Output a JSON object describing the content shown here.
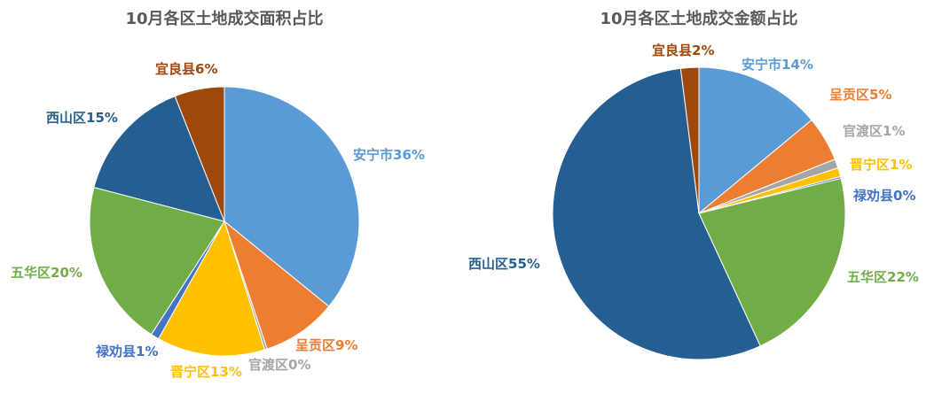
{
  "chart_data": [
    {
      "type": "pie",
      "title": "10月各区土地成交面积占比",
      "categories": [
        "安宁市",
        "呈贡区",
        "官渡区",
        "晋宁区",
        "禄劝县",
        "五华区",
        "西山区",
        "宜良县"
      ],
      "values": [
        36,
        9,
        0.3,
        13,
        1,
        20,
        15,
        6
      ],
      "value_labels": [
        "36%",
        "9%",
        "0%",
        "13%",
        "1%",
        "20%",
        "15%",
        "6%"
      ],
      "colors": [
        "#5b9bd5",
        "#ed7d31",
        "#a5a5a5",
        "#ffc000",
        "#4472c4",
        "#70ad47",
        "#255e91",
        "#9e480e"
      ]
    },
    {
      "type": "pie",
      "title": "10月各区土地成交金额占比",
      "categories": [
        "安宁市",
        "呈贡区",
        "官渡区",
        "晋宁区",
        "禄劝县",
        "五华区",
        "西山区",
        "宜良县"
      ],
      "values": [
        14,
        5,
        1,
        1,
        0.2,
        22,
        55,
        2
      ],
      "value_labels": [
        "14%",
        "5%",
        "1%",
        "1%",
        "0%",
        "22%",
        "55%",
        "2%"
      ],
      "colors": [
        "#5b9bd5",
        "#ed7d31",
        "#a5a5a5",
        "#ffc000",
        "#4472c4",
        "#70ad47",
        "#255e91",
        "#9e480e"
      ]
    }
  ]
}
